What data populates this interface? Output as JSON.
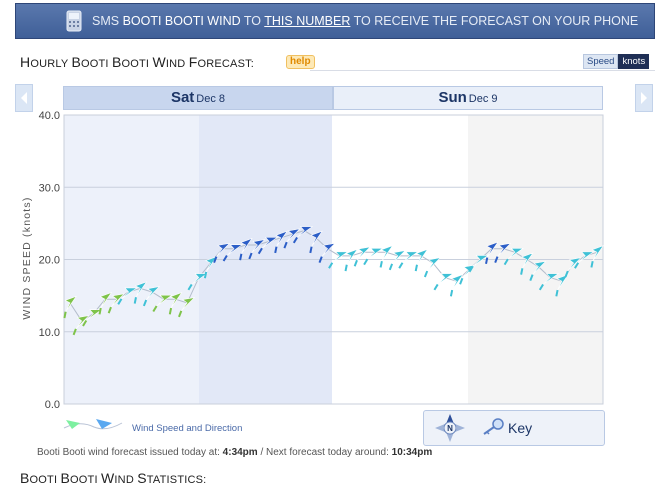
{
  "sms": {
    "prefix": "SMS ",
    "spot": "BOOTI BOOTI WIND",
    "to": " TO ",
    "link": "THIS NUMBER",
    "suffix": " TO RECEIVE THE FORECAST ON YOUR PHONE"
  },
  "forecast_title": {
    "first": "H",
    "rest": "OURLY ",
    "b1": "B",
    "r1": "OOTI ",
    "b2": "B",
    "r2": "OOTI ",
    "b3": "W",
    "r3": "IND ",
    "b4": "F",
    "r4": "ORECAST:"
  },
  "help_label": "help",
  "unit_toggle": {
    "speed": "Speed",
    "knots": "knots"
  },
  "days": [
    {
      "name": "Sat",
      "date": "Dec 8"
    },
    {
      "name": "Sun",
      "date": "Dec 9"
    }
  ],
  "legend_label": "Wind Speed and Direction",
  "key_label": "Key",
  "compass_label": "N",
  "issued": {
    "prefix": "Booti Booti wind forecast issued today at: ",
    "time": "4:34pm",
    "mid": " / Next forecast today around: ",
    "next": "10:34pm"
  },
  "stats_title": {
    "b1": "B",
    "r1": "OOTI ",
    "b2": "B",
    "r2": "OOTI ",
    "b3": "W",
    "r3": "IND ",
    "b4": "S",
    "r4": "TATISTICS:"
  },
  "chart_data": {
    "type": "line",
    "ylabel": "WIND SPEED (knots)",
    "ylim": [
      0,
      40
    ],
    "yticks": [
      "0.0",
      "10.0",
      "20.0",
      "30.0",
      "40.0"
    ],
    "grid": true,
    "series": [
      {
        "name": "Wind Speed and Direction",
        "values": [
          14,
          11.5,
          12.5,
          14.5,
          14.5,
          15.5,
          16,
          15.5,
          14.5,
          14.5,
          14,
          17.5,
          19.5,
          21.5,
          21.5,
          22,
          22,
          22.5,
          23,
          23.5,
          24,
          23,
          21.5,
          20.5,
          20.5,
          21,
          21,
          21,
          20.5,
          20.5,
          20.5,
          19.5,
          17.5,
          17,
          18.5,
          20,
          21.5,
          21.5,
          21,
          20,
          19,
          17.5,
          17,
          19.5,
          20.5,
          21
        ]
      }
    ]
  },
  "colors": {
    "sat_shade": "#e2e8f7",
    "sat_light": "#edf1fa",
    "sun_shade": "#f4f4f4",
    "low": "#7ec34a",
    "mid": "#3fc1d6",
    "high": "#2c5ec7"
  }
}
